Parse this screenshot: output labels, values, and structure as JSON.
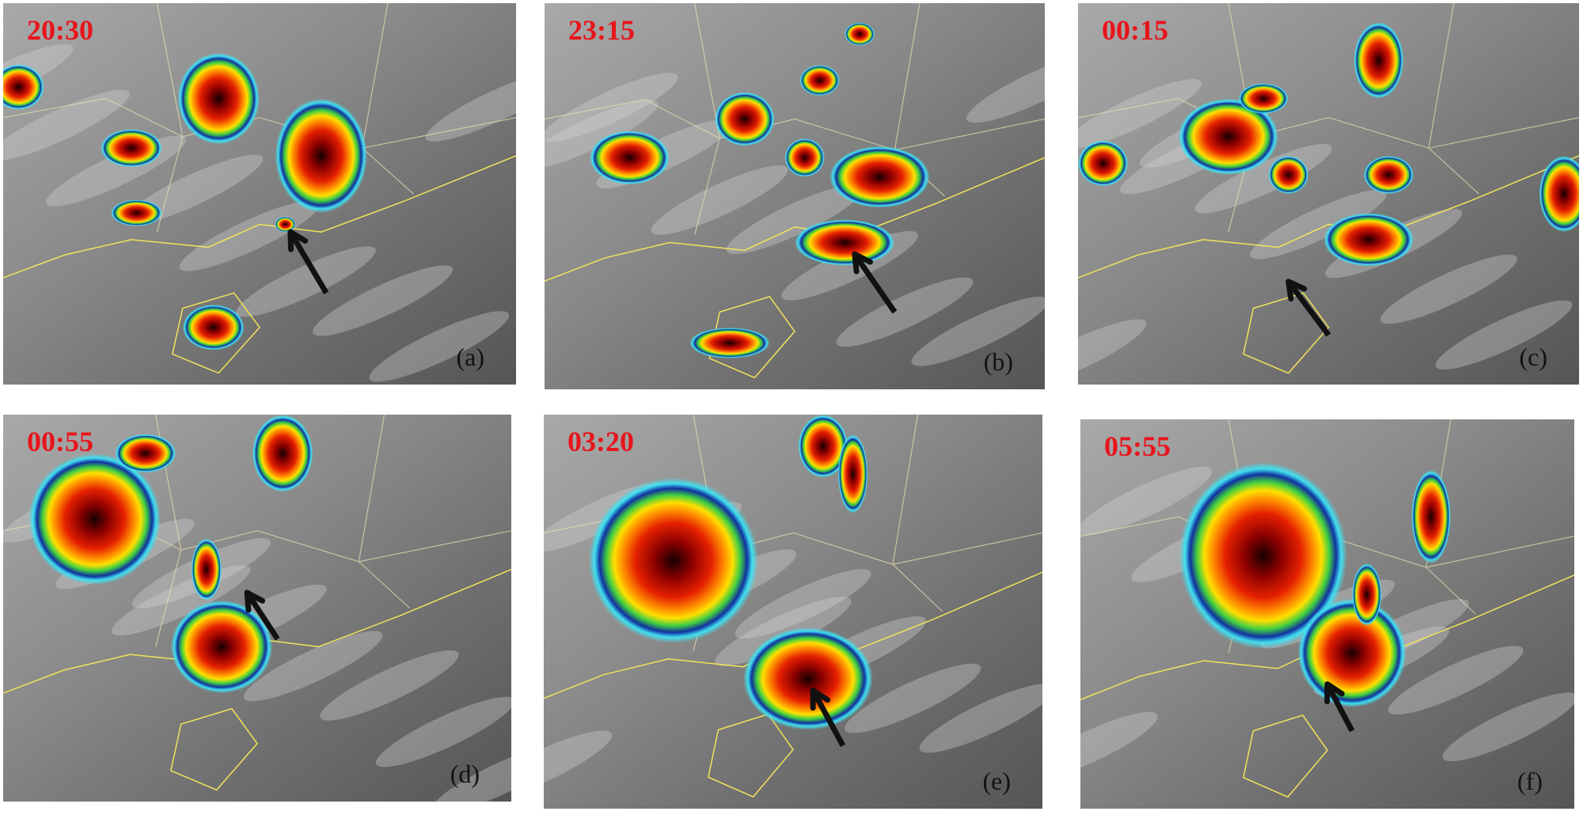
{
  "panels": [
    {
      "time": "20:30",
      "label": "(a)"
    },
    {
      "time": "23:15",
      "label": "(b)"
    },
    {
      "time": "00:15",
      "label": "(c)"
    },
    {
      "time": "00:55",
      "label": "(d)"
    },
    {
      "time": "03:20",
      "label": "(e)"
    },
    {
      "time": "05:55",
      "label": "(f)"
    }
  ]
}
